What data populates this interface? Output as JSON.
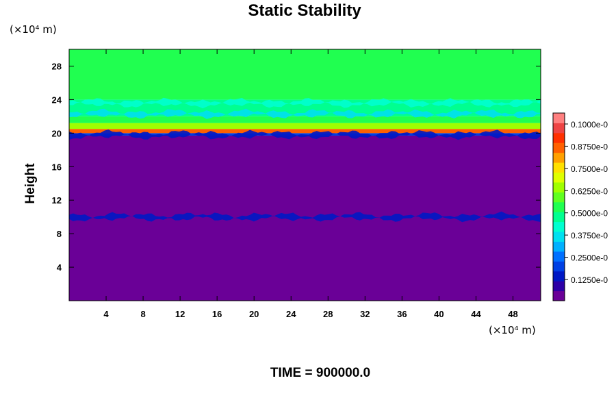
{
  "chart_data": {
    "type": "heatmap",
    "title": "Static Stability",
    "ylabel": "Height",
    "x_unit": "(×10⁴ m)",
    "y_unit": "(×10⁴ m)",
    "footer": "TIME = 900000.0",
    "xlim": [
      0,
      51
    ],
    "ylim": [
      0,
      30
    ],
    "x_ticks": [
      "4",
      "8",
      "12",
      "16",
      "20",
      "24",
      "28",
      "32",
      "36",
      "40",
      "44",
      "48"
    ],
    "y_ticks": [
      "4",
      "8",
      "12",
      "16",
      "20",
      "24",
      "28"
    ],
    "colorbar": {
      "min": 0,
      "max": 0.11,
      "labels": [
        "0.1000e-0",
        "0.8750e-0",
        "0.7500e-0",
        "0.6250e-0",
        "0.5000e-0",
        "0.3750e-0",
        "0.2500e-0",
        "0.1250e-0"
      ],
      "colors": [
        "#6a0097",
        "#2d00a6",
        "#0018c4",
        "#0040e4",
        "#0070ff",
        "#00b0ff",
        "#00e0f0",
        "#00ffd0",
        "#00ff90",
        "#20ff50",
        "#60ff20",
        "#a0ff00",
        "#e0ff00",
        "#ffe000",
        "#ffa000",
        "#ff6000",
        "#ff3000",
        "#ee4444",
        "#ff8080"
      ]
    },
    "layers": [
      {
        "from": 0,
        "to": 19.7,
        "level": 0
      },
      {
        "from": 19.7,
        "to": 20.0,
        "level": 3
      },
      {
        "from": 20.0,
        "to": 20.5,
        "level": 15
      },
      {
        "from": 20.5,
        "to": 21.2,
        "level": 11
      },
      {
        "from": 21.2,
        "to": 22.0,
        "level": 9
      },
      {
        "from": 22.0,
        "to": 24.0,
        "level": 8
      },
      {
        "from": 24.0,
        "to": 30.0,
        "level": 9
      }
    ],
    "bands": [
      {
        "y": 10.0,
        "level": 2
      },
      {
        "y": 19.8,
        "level": 2
      },
      {
        "y": 22.3,
        "level": 6
      },
      {
        "y": 23.6,
        "level": 7
      }
    ]
  }
}
